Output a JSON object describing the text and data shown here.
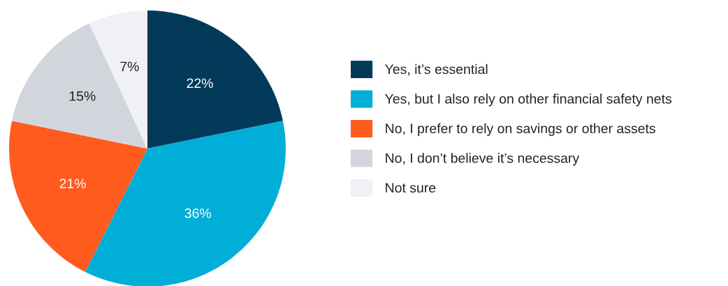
{
  "chart_data": {
    "type": "pie",
    "categories": [
      "Yes, it’s essential",
      "Yes, but I also rely on other financial safety nets",
      "No, I prefer to rely on savings or other assets",
      "No, I don’t believe it’s necessary",
      "Not sure"
    ],
    "values": [
      22,
      36,
      21,
      15,
      7
    ],
    "colors": [
      "#033a5a",
      "#00aed8",
      "#ff5b1f",
      "#d2d6dc",
      "#eff1f4"
    ],
    "value_labels": [
      "22%",
      "36%",
      "21%",
      "15%",
      "7%"
    ],
    "legend": "right"
  }
}
